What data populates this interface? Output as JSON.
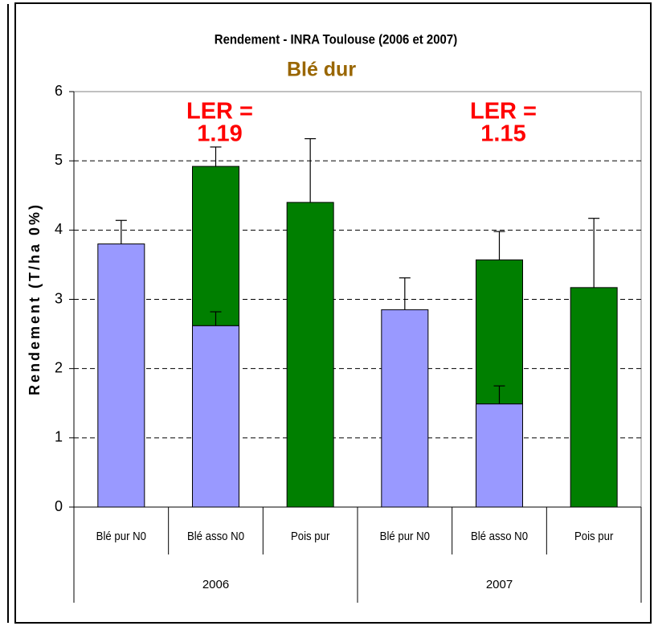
{
  "chart_data": {
    "type": "stacked_bar",
    "title": "Rendement - INRA Toulouse (2006 et 2007)",
    "subtitle": "Blé dur",
    "y_label": "Rendement (T/ha 0%)",
    "categories": [
      "Blé pur N0",
      "Blé asso N0",
      "Pois pur",
      "Blé pur N0",
      "Blé asso N0",
      "Pois pur"
    ],
    "groups": [
      {
        "label": "2006",
        "size": 3
      },
      {
        "label": "2007",
        "size": 3
      }
    ],
    "series": [
      {
        "color": "#9999ff",
        "values": [
          3.8,
          2.62,
          null,
          2.85,
          1.49,
          null
        ],
        "errors": [
          0.34,
          0.2,
          null,
          0.46,
          0.26,
          null
        ]
      },
      {
        "color": "#007f00",
        "values": [
          null,
          2.3,
          4.4,
          null,
          2.08,
          3.17
        ],
        "errors": [
          null,
          0.28,
          0.92,
          null,
          0.41,
          1.0
        ]
      }
    ],
    "annotations": [
      {
        "lines": [
          "LER =",
          "1.19"
        ],
        "category": 1
      },
      {
        "lines": [
          "LER =",
          "1.15"
        ],
        "category": 4
      }
    ],
    "ylim": [
      0,
      6
    ],
    "yticks": [
      0,
      1,
      2,
      3,
      4,
      5,
      6
    ],
    "grid": true
  }
}
